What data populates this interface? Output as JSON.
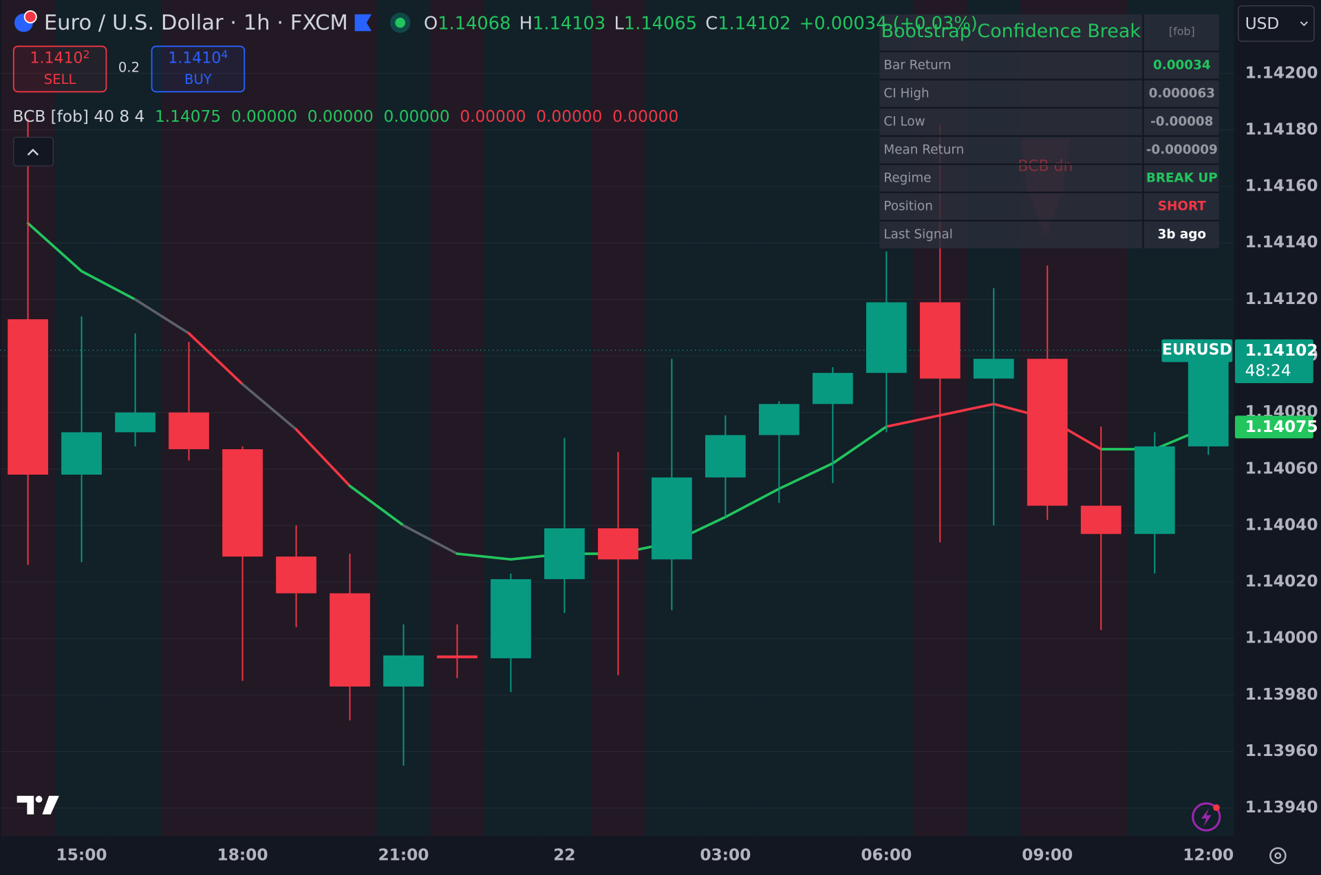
{
  "header": {
    "symbol": "Euro / U.S. Dollar · 1h · FXCM",
    "open_label": "O",
    "open": "1.14068",
    "high_label": "H",
    "high": "1.14103",
    "low_label": "L",
    "low": "1.14065",
    "close_label": "C",
    "close": "1.14102",
    "change": "+0.00034 (+0.03%)"
  },
  "trade": {
    "sell_price": "1.1410",
    "sell_sup": "2",
    "sell": "SELL",
    "spread": "0.2",
    "buy_price": "1.1410",
    "buy_sup": "4",
    "buy": "BUY"
  },
  "currency": "USD",
  "indicator": {
    "label": "BCB [fob] 40 8 4",
    "values": [
      {
        "text": "1.14075",
        "color": "#22c55e"
      },
      {
        "text": "0.00000",
        "color": "#22c55e"
      },
      {
        "text": "0.00000",
        "color": "#22c55e"
      },
      {
        "text": "0.00000",
        "color": "#22c55e"
      },
      {
        "text": "0.00000",
        "color": "#f23645"
      },
      {
        "text": "0.00000",
        "color": "#f23645"
      },
      {
        "text": "0.00000",
        "color": "#f23645"
      }
    ]
  },
  "table": {
    "title": "Bootstrap Confidence Break",
    "tag": "[fob]",
    "rows": [
      {
        "label": "Bar Return",
        "value": "0.00034",
        "color": "#22c55e"
      },
      {
        "label": "CI High",
        "value": "0.000063",
        "color": "#9598a1"
      },
      {
        "label": "CI Low",
        "value": "-0.00008",
        "color": "#9598a1"
      },
      {
        "label": "Mean Return",
        "value": "-0.000009",
        "color": "#9598a1"
      },
      {
        "label": "Regime",
        "value": "BREAK UP",
        "color": "#22c55e"
      },
      {
        "label": "Position",
        "value": "SHORT",
        "color": "#f23645"
      },
      {
        "label": "Last Signal",
        "value": "3b ago",
        "color": "#ffffff"
      }
    ]
  },
  "signal_label": "BCB dn",
  "price_labels": {
    "countdown": "48:24"
  },
  "chart_data": {
    "type": "candlestick",
    "categories": [
      null,
      "15:00",
      null,
      null,
      "18:00",
      null,
      null,
      "21:00",
      null,
      null,
      "22",
      null,
      null,
      "03:00",
      null,
      null,
      "06:00",
      null,
      null,
      "09:00",
      null,
      null,
      "12:00"
    ],
    "series": [
      {
        "name": "EURUSD",
        "up_color": "#089981",
        "down_color": "#f23645",
        "open": [
          1.14113,
          1.14058,
          1.14073,
          1.1408,
          1.14067,
          1.14029,
          1.14016,
          1.13983,
          1.13994,
          1.13993,
          1.14021,
          1.14039,
          1.14028,
          1.14057,
          1.14072,
          1.14083,
          1.14094,
          1.14119,
          1.14092,
          1.14099,
          1.14047,
          1.14037,
          1.14068
        ],
        "high": [
          1.14184,
          1.14114,
          1.14108,
          1.14105,
          1.14068,
          1.1404,
          1.1403,
          1.14005,
          1.14005,
          1.14023,
          1.14071,
          1.14066,
          1.14099,
          1.14079,
          1.14084,
          1.14096,
          1.14137,
          1.14182,
          1.14124,
          1.14132,
          1.14075,
          1.14073,
          1.14103
        ],
        "low": [
          1.14026,
          1.14027,
          1.14068,
          1.14063,
          1.13985,
          1.14004,
          1.13971,
          1.13955,
          1.13986,
          1.13981,
          1.14009,
          1.13987,
          1.1401,
          1.14043,
          1.14048,
          1.14055,
          1.14073,
          1.14034,
          1.1404,
          1.14042,
          1.14003,
          1.14023,
          1.14065
        ],
        "close": [
          1.14058,
          1.14073,
          1.1408,
          1.14067,
          1.14029,
          1.14016,
          1.13983,
          1.13994,
          1.13993,
          1.14021,
          1.14039,
          1.14028,
          1.14057,
          1.14072,
          1.14083,
          1.14094,
          1.14119,
          1.14092,
          1.14099,
          1.14047,
          1.14037,
          1.14068,
          1.14102
        ]
      }
    ],
    "basis": {
      "values": [
        1.14147,
        1.1413,
        1.1412,
        1.14108,
        1.1409,
        1.14074,
        1.14054,
        1.1404,
        1.1403,
        1.14028,
        1.1403,
        1.1403,
        1.14034,
        1.14043,
        1.14053,
        1.14062,
        1.14075,
        1.14079,
        1.14083,
        1.14078,
        1.14067,
        1.14067,
        1.14075
      ],
      "segment_colors": [
        "#22c55e",
        "#22c55e",
        "#5d606b",
        "#f23645",
        "#5d606b",
        "#f23645",
        "#22c55e",
        "#5d606b",
        "#22c55e",
        "#22c55e",
        "#22c55e",
        "#22c55e",
        "#22c55e",
        "#22c55e",
        "#22c55e",
        "#22c55e",
        "#f23645",
        "#f23645",
        "#f23645",
        "#f23645",
        "#22c55e",
        "#22c55e"
      ]
    },
    "ylim": [
      1.1393,
      1.14226
    ],
    "yticks": [
      {
        "value": 1.142,
        "label": "1.14200"
      },
      {
        "value": 1.1418,
        "label": "1.14180"
      },
      {
        "value": 1.1416,
        "label": "1.14160"
      },
      {
        "value": 1.1414,
        "label": "1.14140"
      },
      {
        "value": 1.1412,
        "label": "1.14120"
      },
      {
        "value": 1.141,
        "label": "1.14100"
      },
      {
        "value": 1.1408,
        "label": "1.14080"
      },
      {
        "value": 1.1406,
        "label": "1.14060"
      },
      {
        "value": 1.1404,
        "label": "1.14040"
      },
      {
        "value": 1.1402,
        "label": "1.14020"
      },
      {
        "value": 1.14,
        "label": "1.14000"
      },
      {
        "value": 1.1398,
        "label": "1.13980"
      },
      {
        "value": 1.1396,
        "label": "1.13960"
      },
      {
        "value": 1.1394,
        "label": "1.13940"
      }
    ],
    "grid": true
  }
}
